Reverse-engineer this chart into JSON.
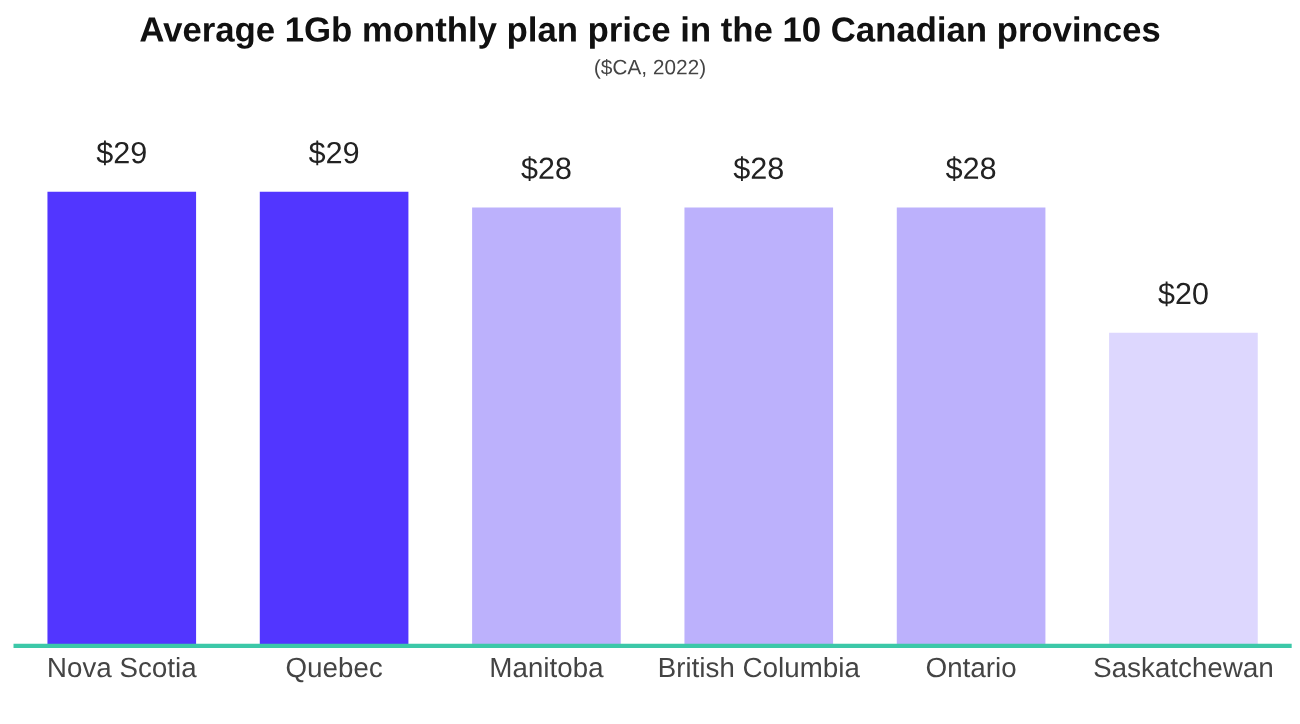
{
  "chart_data": {
    "type": "bar",
    "title": "Average 1Gb monthly plan price in the 10 Canadian provinces",
    "subtitle": "($CA, 2022)",
    "categories": [
      "Nova Scotia",
      "Quebec",
      "Manitoba",
      "British Columbia",
      "Ontario",
      "Saskatchewan"
    ],
    "values": [
      29,
      29,
      28,
      28,
      28,
      20
    ],
    "colors": [
      "#5236ff",
      "#5236ff",
      "#bcb1fc",
      "#bcb1fc",
      "#bcb1fc",
      "#ddd7fe"
    ],
    "value_labels": [
      "$29",
      "$29",
      "$28",
      "$28",
      "$28",
      "$20"
    ],
    "tick_labels": "x",
    "grid": false,
    "legend": false
  }
}
